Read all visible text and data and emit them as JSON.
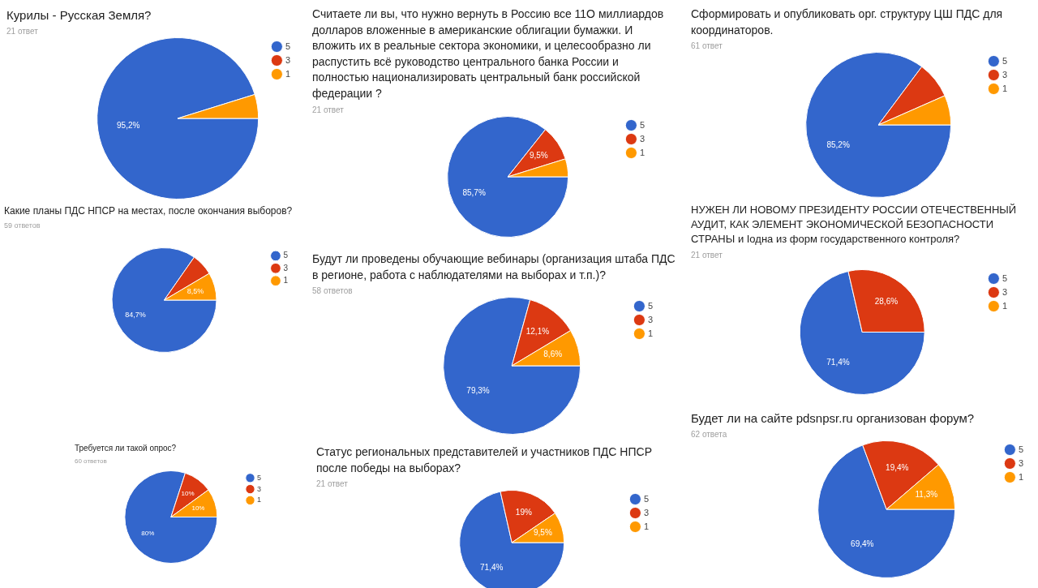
{
  "chart_data": [
    {
      "type": "pie",
      "title": "Курилы - Русская Земля?",
      "subtitle": "21 ответ",
      "categories": [
        "5",
        "3",
        "1"
      ],
      "values": [
        95.2,
        0,
        4.8
      ],
      "colors": [
        "#3366cc",
        "#dc3912",
        "#ff9900"
      ],
      "value_labels": [
        "95,2%",
        null,
        null
      ],
      "legend": "top right"
    },
    {
      "type": "pie",
      "title": "Считаете ли вы, что нужно вернуть в Россию все 11О миллиардов долларов вложенные в американские облигации бумажки. И вложить их в реальные сектора экономики, и целесообразно ли распустить всё руководство центрального банка России и полностью национализировать центральный банк российской федерации ?",
      "subtitle": "21 ответ",
      "categories": [
        "5",
        "3",
        "1"
      ],
      "values": [
        85.7,
        9.5,
        4.8
      ],
      "colors": [
        "#3366cc",
        "#dc3912",
        "#ff9900"
      ],
      "value_labels": [
        "85,7%",
        "9,5%",
        null
      ],
      "legend": "top right"
    },
    {
      "type": "pie",
      "title": "Сформировать и опубликовать орг. структуру ЦШ ПДС для координаторов.",
      "subtitle": "61 ответ",
      "categories": [
        "5",
        "3",
        "1"
      ],
      "values": [
        85.2,
        8.2,
        6.6
      ],
      "colors": [
        "#3366cc",
        "#dc3912",
        "#ff9900"
      ],
      "value_labels": [
        "85,2%",
        null,
        null
      ],
      "legend": "top right"
    },
    {
      "type": "pie",
      "title": "Какие планы ПДС НПСР на местах, после окончания выборов?",
      "subtitle": "59 ответов",
      "categories": [
        "5",
        "3",
        "1"
      ],
      "values": [
        84.7,
        6.8,
        8.5
      ],
      "colors": [
        "#3366cc",
        "#dc3912",
        "#ff9900"
      ],
      "value_labels": [
        "84,7%",
        null,
        "8,5%"
      ],
      "legend": "top right"
    },
    {
      "type": "pie",
      "title": "Будут ли проведены обучающие вебинары (организация штаба ПДС в регионе, работа с наблюдателями на выборах и т.п.)?",
      "subtitle": "58 ответов",
      "categories": [
        "5",
        "3",
        "1"
      ],
      "values": [
        79.3,
        12.1,
        8.6
      ],
      "colors": [
        "#3366cc",
        "#dc3912",
        "#ff9900"
      ],
      "value_labels": [
        "79,3%",
        "12,1%",
        "8,6%"
      ],
      "legend": "top right"
    },
    {
      "type": "pie",
      "title": "НУЖЕН ЛИ НОВОМУ ПРЕЗИДЕНТУ РОССИИ ОТЕЧЕСТВЕННЫЙ АУДИТ, КАК ЭЛЕМЕНТ ЭКОНОМИЧЕСКОЙ БЕЗОПАСНОСТИ СТРАНЫ и Iодна из форм государственного контроля?",
      "subtitle": "21 ответ",
      "categories": [
        "5",
        "3",
        "1"
      ],
      "values": [
        71.4,
        28.6,
        0
      ],
      "colors": [
        "#3366cc",
        "#dc3912",
        "#ff9900"
      ],
      "value_labels": [
        "71,4%",
        "28,6%",
        null
      ],
      "legend": "top right"
    },
    {
      "type": "pie",
      "title": "Требуется ли такой опрос?",
      "subtitle": "60 ответов",
      "categories": [
        "5",
        "3",
        "1"
      ],
      "values": [
        80,
        10,
        10
      ],
      "colors": [
        "#3366cc",
        "#dc3912",
        "#ff9900"
      ],
      "value_labels": [
        "80%",
        "10%",
        "10%"
      ],
      "legend": "top right"
    },
    {
      "type": "pie",
      "title": "Статус региональных представителей и участников ПДС НПСР после победы на выборах?",
      "subtitle": "21 ответ",
      "categories": [
        "5",
        "3",
        "1"
      ],
      "values": [
        71.4,
        19,
        9.5
      ],
      "colors": [
        "#3366cc",
        "#dc3912",
        "#ff9900"
      ],
      "value_labels": [
        "71,4%",
        "19%",
        "9,5%"
      ],
      "legend": "top right"
    },
    {
      "type": "pie",
      "title": "Будет ли на сайте pdsnpsr.ru организован форум?",
      "subtitle": "62 ответа",
      "categories": [
        "5",
        "3",
        "1"
      ],
      "values": [
        69.4,
        19.4,
        11.3
      ],
      "colors": [
        "#3366cc",
        "#dc3912",
        "#ff9900"
      ],
      "value_labels": [
        "69,4%",
        "19,4%",
        "11,3%"
      ],
      "legend": "top right"
    }
  ]
}
